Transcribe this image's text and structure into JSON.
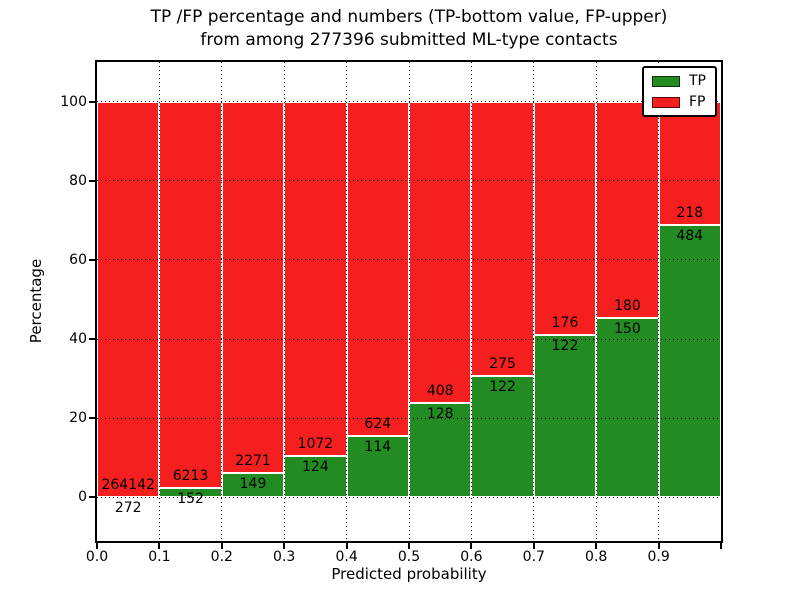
{
  "figure": {
    "title_line1": "TP /FP percentage and numbers (TP-bottom value, FP-upper)",
    "title_line2": "from among 277396 submitted ML-type contacts"
  },
  "chart_data": {
    "type": "bar",
    "stacked": true,
    "title": "TP /FP percentage and numbers (TP-bottom value, FP-upper) from among 277396 submitted ML-type contacts",
    "xlabel": "Predicted probability",
    "ylabel": "Percentage",
    "total_contacts": 277396,
    "x_tick_labels": [
      "0.0",
      "0.1",
      "0.2",
      "0.3",
      "0.4",
      "0.5",
      "0.6",
      "0.7",
      "0.8",
      "0.9"
    ],
    "y_ticks": [
      0,
      20,
      40,
      60,
      80,
      100
    ],
    "xlim": [
      0.0,
      1.0
    ],
    "ylim": [
      -11,
      110
    ],
    "bin_width": 0.1,
    "grid": "dotted",
    "bar_heights_sum_to": 100,
    "legend": {
      "position": "upper right",
      "entries": [
        {
          "label": "TP",
          "color": "#228b22"
        },
        {
          "label": "FP",
          "color": "#f51f1f"
        }
      ]
    },
    "categories": [
      "0.0-0.1",
      "0.1-0.2",
      "0.2-0.3",
      "0.3-0.4",
      "0.4-0.5",
      "0.5-0.6",
      "0.6-0.7",
      "0.7-0.8",
      "0.8-0.9",
      "0.9-1.0"
    ],
    "series": [
      {
        "name": "TP",
        "color": "#228b22",
        "counts": [
          272,
          152,
          149,
          124,
          114,
          128,
          122,
          122,
          150,
          484
        ]
      },
      {
        "name": "FP",
        "color": "#f51f1f",
        "counts": [
          264142,
          6213,
          2271,
          1072,
          624,
          408,
          275,
          176,
          180,
          218
        ]
      }
    ],
    "tp_percent_by_bin": [
      0.1,
      2.39,
      6.16,
      10.37,
      15.45,
      23.88,
      30.73,
      40.94,
      45.45,
      68.95
    ]
  },
  "colors": {
    "tp_green": "#228b22",
    "fp_red": "#f51f1f",
    "grid": "#000000",
    "background": "#ffffff",
    "bar_edge": "#ffffff"
  }
}
